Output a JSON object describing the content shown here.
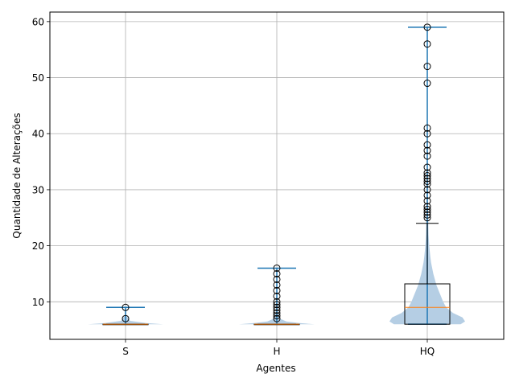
{
  "chart_data": {
    "type": "box+violin",
    "title": "",
    "xlabel": "Agentes",
    "ylabel": "Quantidade de Alterações",
    "categories": [
      "S",
      "H",
      "HQ"
    ],
    "ylim": [
      3.3,
      61.7
    ],
    "yticks": [
      10,
      20,
      30,
      40,
      50,
      60
    ],
    "grid": true,
    "box": [
      {
        "category": "S",
        "min": 6,
        "q1": 6,
        "median": 6,
        "q3": 6,
        "max": 6,
        "outliers": [
          7,
          9
        ]
      },
      {
        "category": "H",
        "min": 6,
        "q1": 6,
        "median": 6,
        "q3": 6,
        "max": 6,
        "outliers": [
          7,
          7.5,
          8,
          8.5,
          9,
          9.5,
          10,
          11,
          12,
          13,
          14,
          15,
          16
        ]
      },
      {
        "category": "HQ",
        "min": 6,
        "q1": 6,
        "median": 9,
        "q3": 13.2,
        "max": 24,
        "outliers": [
          25,
          25.5,
          26,
          26.5,
          27,
          28,
          29,
          30,
          31,
          31.5,
          32,
          32.5,
          33,
          34,
          36,
          37,
          38,
          40,
          41,
          49,
          52,
          56,
          59
        ]
      }
    ],
    "violin": [
      {
        "category": "S",
        "min": 6,
        "max": 9,
        "profile": [
          [
            6,
            1.0
          ],
          [
            6.2,
            0.55
          ],
          [
            6.6,
            0.12
          ],
          [
            7,
            0.08
          ],
          [
            7.5,
            0.02
          ],
          [
            8.5,
            0.01
          ],
          [
            9,
            0.0
          ]
        ]
      },
      {
        "category": "H",
        "min": 6,
        "max": 16,
        "profile": [
          [
            6,
            1.0
          ],
          [
            6.2,
            0.6
          ],
          [
            6.5,
            0.25
          ],
          [
            7,
            0.08
          ],
          [
            8,
            0.03
          ],
          [
            10,
            0.015
          ],
          [
            13,
            0.01
          ],
          [
            16,
            0.0
          ]
        ]
      },
      {
        "category": "HQ",
        "min": 6,
        "max": 59,
        "profile": [
          [
            6,
            0.88
          ],
          [
            6.5,
            1.0
          ],
          [
            7.2,
            0.93
          ],
          [
            8,
            0.68
          ],
          [
            9,
            0.5
          ],
          [
            10,
            0.42
          ],
          [
            11,
            0.36
          ],
          [
            12,
            0.3
          ],
          [
            13,
            0.24
          ],
          [
            14,
            0.2
          ],
          [
            15,
            0.16
          ],
          [
            16,
            0.13
          ],
          [
            17,
            0.1
          ],
          [
            18,
            0.08
          ],
          [
            19,
            0.065
          ],
          [
            20,
            0.05
          ],
          [
            22,
            0.035
          ],
          [
            24,
            0.028
          ],
          [
            26,
            0.022
          ],
          [
            30,
            0.016
          ],
          [
            35,
            0.012
          ],
          [
            40,
            0.01
          ],
          [
            50,
            0.006
          ],
          [
            59,
            0.0
          ]
        ]
      }
    ],
    "colors": {
      "violin_fill": "#b5cee4",
      "violin_lines": "#1f77b4",
      "box_line": "#000000",
      "median": "#ff7f0e",
      "grid": "#b0b0b0"
    }
  }
}
